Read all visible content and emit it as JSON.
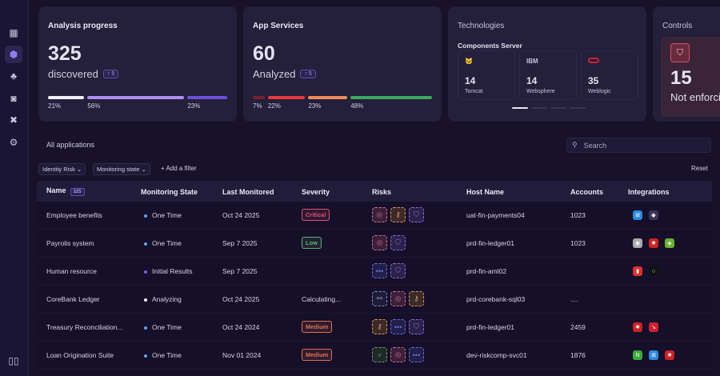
{
  "sidebar": {
    "items": [
      {
        "icon": "grid-icon"
      },
      {
        "icon": "apps-icon",
        "active": true
      },
      {
        "icon": "cluster-icon"
      },
      {
        "icon": "shield-check-icon"
      },
      {
        "icon": "tools-icon"
      },
      {
        "icon": "settings-icon"
      }
    ],
    "bottom_icon": "book-icon"
  },
  "cards": {
    "analysis": {
      "title": "Analysis progress",
      "value": "325",
      "label": "discovered",
      "badge": "↑ 5",
      "segments": [
        {
          "pct": "21%",
          "color": "#f0eef8"
        },
        {
          "pct": "56%",
          "color": "#b08ef0"
        },
        {
          "pct": "23%",
          "color": "#6a4fe0"
        }
      ]
    },
    "services": {
      "title": "App Services",
      "value": "60",
      "label": "Analyzed",
      "badge": "↑ 5",
      "segments": [
        {
          "pct": "7%",
          "color": "#7a2030"
        },
        {
          "pct": "22%",
          "color": "#e83a3a"
        },
        {
          "pct": "23%",
          "color": "#f08a5a"
        },
        {
          "pct": "48%",
          "color": "#3aaa5a"
        }
      ]
    },
    "technologies": {
      "title": "Technologies",
      "subtitle": "Components Server",
      "items": [
        {
          "logo": "tomcat-logo",
          "count": "14",
          "name": "Tomcat"
        },
        {
          "logo": "IBM",
          "count": "14",
          "name": "Websphere"
        },
        {
          "logo": "oracle-logo",
          "count": "35",
          "name": "Weblogic"
        }
      ],
      "page": 1,
      "pages": 4
    },
    "controls": {
      "title": "Controls",
      "value": "15",
      "label": "Not enforcing"
    }
  },
  "table": {
    "title": "All applications",
    "search_placeholder": "Search",
    "filters": [
      "Identity Risk ⌄",
      "Monitoring state ⌄"
    ],
    "add_filter": "+ Add a filter",
    "reset": "Reset",
    "headers": {
      "name": "Name",
      "count": "325",
      "monitoring": "Monitoring State",
      "last": "Last Monitored",
      "severity": "Severity",
      "risks": "Risks",
      "host": "Host Name",
      "accounts": "Accounts",
      "integrations": "Integrations"
    },
    "rows": [
      {
        "name": "Employee benefits",
        "state": "One Time",
        "state_color": "#5aa8f0",
        "last": "Oct 24 2025",
        "severity": "Critical",
        "severity_color": "#e05070",
        "risks": [
          "database",
          "key",
          "shield"
        ],
        "host": "uat-fin-payments04",
        "accounts": "1023",
        "integrations": [
          "windows",
          "linux"
        ]
      },
      {
        "name": "Payrolis system",
        "state": "One Time",
        "state_color": "#5aa8f0",
        "last": "Sep 7 2025",
        "severity": "Low",
        "severity_color": "#60b070",
        "risks": [
          "database",
          "shield"
        ],
        "host": "prd-fin-ledger01",
        "accounts": "1023",
        "integrations": [
          "circle",
          "redhat",
          "android"
        ]
      },
      {
        "name": "Human resource",
        "state": "Initial Results",
        "state_color": "#8a5af0",
        "last": "Sep 7 2025",
        "severity": "",
        "severity_color": "",
        "risks": [
          "more",
          "shield"
        ],
        "host": "prd-fin-aml02",
        "accounts": "",
        "integrations": [
          "red-app",
          "ring"
        ]
      },
      {
        "name": "CoreBank  Ledger",
        "state": "Analyzing",
        "state_color": "#ffffff",
        "last": "Oct 24 2025",
        "severity": "Calculating...",
        "severity_color": "",
        "risks": [
          "network",
          "database",
          "key"
        ],
        "host": "prd-corebank-sql03",
        "accounts": "....",
        "integrations": []
      },
      {
        "name": "Treasury Reconciliation...",
        "state": "One Time",
        "state_color": "#5aa8f0",
        "last": "Oct 24 2024",
        "severity": "Medium",
        "severity_color": "#e07050",
        "risks": [
          "key",
          "more",
          "shield"
        ],
        "host": "prd-fin-ledger01",
        "accounts": "2459",
        "integrations": [
          "redhat",
          "debian"
        ]
      },
      {
        "name": "Loan Origination Suite",
        "state": "One Time",
        "state_color": "#5aa8f0",
        "last": "Nov 01 2024",
        "severity": "Medium",
        "severity_color": "#e07050",
        "risks": [
          "cactus",
          "database",
          "more"
        ],
        "host": "dev-riskcomp-svc01",
        "accounts": "1876",
        "integrations": [
          "nginx",
          "windows",
          "redhat"
        ]
      }
    ]
  }
}
